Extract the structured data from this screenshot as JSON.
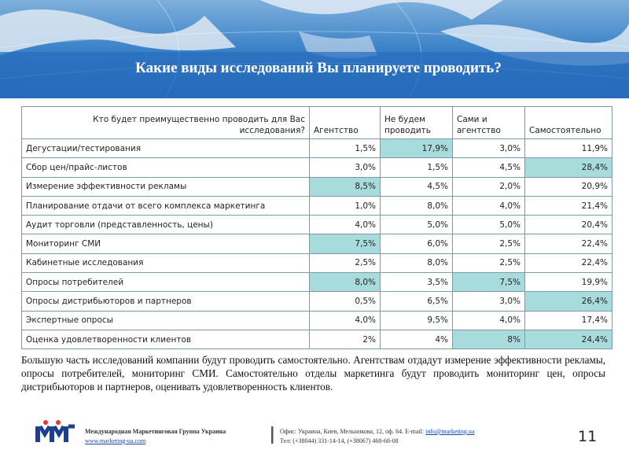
{
  "title": "Какие виды исследований Вы планируете проводить?",
  "table": {
    "header": [
      "Кто будет преимущественно проводить для Вас исследования?",
      "Агентство",
      "Не будем проводить",
      "Сами и агентство",
      "Самостоятельно"
    ],
    "rows": [
      [
        "Дегустации/тестирования",
        "1,5%",
        "17,9%",
        "3,0%",
        "11,9%"
      ],
      [
        "Сбор цен/прайс-листов",
        "3,0%",
        "1,5%",
        "4,5%",
        "28,4%"
      ],
      [
        "Измерение эффективности рекламы",
        "8,5%",
        "4,5%",
        "2,0%",
        "20,9%"
      ],
      [
        "Планирование отдачи от всего комплекса маркетинга",
        "1,0%",
        "8,0%",
        "4,0%",
        "21,4%"
      ],
      [
        "Аудит торговли (представленность, цены)",
        "4,0%",
        "5,0%",
        "5,0%",
        "20,4%"
      ],
      [
        "Мониторинг СМИ",
        "7,5%",
        "6,0%",
        "2,5%",
        "22,4%"
      ],
      [
        "Кабинетные исследования",
        "2,5%",
        "8,0%",
        "2,5%",
        "22,4%"
      ],
      [
        "Опросы потребителей",
        "8,0%",
        "3,5%",
        "7,5%",
        "19,9%"
      ],
      [
        "Опросы дистрибьюторов и партнеров",
        "0,5%",
        "6,5%",
        "3,0%",
        "26,4%"
      ],
      [
        "Экспертные опросы",
        "4,0%",
        "9,5%",
        "4,0%",
        "17,4%"
      ],
      [
        "Оценка удовлетворенности клиентов",
        "2%",
        "4%",
        "8%",
        "24,4%"
      ]
    ]
  },
  "summary": "Большую часть исследований компании будут проводить самостоятельно. Агентствам отдадут измерение эффективности рекламы, опросы потребителей, мониторинг СМИ. Самостоятельно отделы маркетинга будут проводить мониторинг цен, опросы дистрибьюторов и партнеров, оценивать удовлетворенность клиентов.",
  "footer": {
    "company": "Международная Маркетинговая Группа Украина",
    "website": "www.marketing-ua.com",
    "office": "Офис: Украина, Киев, Мельникова, 12, оф. 64. E-mail:",
    "email": "info@marketing.ua",
    "phone": "Тел: (+38044) 331-14-14, (+38067) 468-68-08",
    "page": "11"
  }
}
